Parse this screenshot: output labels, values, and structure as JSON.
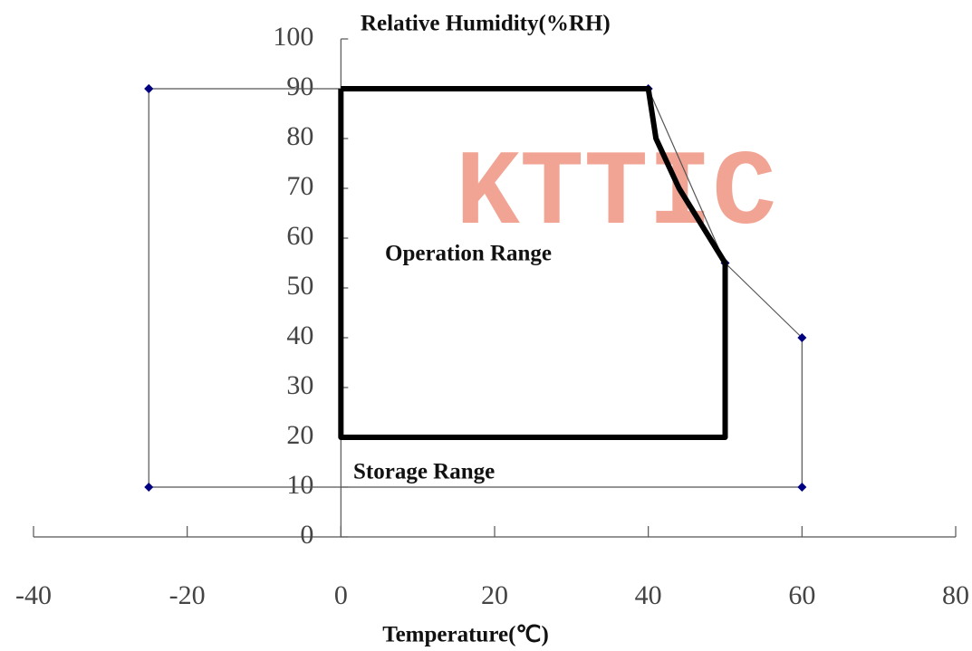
{
  "chart_data": {
    "type": "line",
    "x_label": "Temperature(℃)",
    "y_label": "Relative Humidity(%RH)",
    "watermark": "KTTIC",
    "xlim": [
      -40,
      80
    ],
    "ylim": [
      0,
      100
    ],
    "xticks": [
      -40,
      -20,
      0,
      20,
      40,
      60,
      80
    ],
    "yticks": [
      0,
      10,
      20,
      30,
      40,
      50,
      60,
      70,
      80,
      90,
      100
    ],
    "series": [
      {
        "name": "Storage Range",
        "color": "#000080",
        "markers": true,
        "x": [
          -25,
          40,
          50,
          60,
          60,
          -25,
          -25
        ],
        "values": [
          90,
          90,
          55,
          40,
          10,
          10,
          90
        ]
      },
      {
        "name": "Operation Range",
        "color": "#000000",
        "markers": false,
        "x": [
          0,
          40,
          41,
          44,
          50,
          50,
          0,
          0
        ],
        "values": [
          90,
          90,
          80,
          70,
          55,
          20,
          20,
          90
        ]
      }
    ]
  }
}
